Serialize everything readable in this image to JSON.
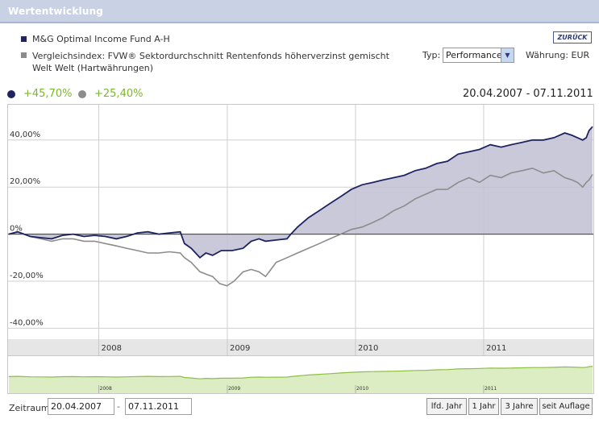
{
  "header": {
    "title": "Wertentwicklung"
  },
  "legend": {
    "fund": {
      "label": "M&G Optimal Income Fund A-H",
      "color": "#1f2460"
    },
    "index": {
      "label_line1": "Vergleichsindex: FVW® Sektordurchschnitt Rentenfonds höherverzinst gemischt",
      "label_line2": "Welt Welt (Hartwährungen)",
      "color": "#8c8c8c"
    }
  },
  "controls": {
    "back_label": "ZURÜCK",
    "typ_label": "Typ:",
    "typ_value": "Performance",
    "currency_label": "Währung: EUR"
  },
  "performance": {
    "fund_value": "+45,70%",
    "index_value": "+25,40%",
    "value_color": "#7ab72a",
    "date_range": "20.04.2007 - 07.11.2011"
  },
  "footer": {
    "zeitraum_label": "Zeitraum:",
    "from_date": "20.04.2007",
    "separator": "-",
    "to_date": "07.11.2011",
    "buttons": [
      "lfd. Jahr",
      "1 Jahr",
      "3 Jahre",
      "seit Auflage"
    ]
  },
  "chart_data": {
    "type": "area",
    "x_range": [
      "2007-04-20",
      "2011-11-07"
    ],
    "ylim": [
      -45,
      55
    ],
    "yticks": [
      40,
      20,
      0,
      -20,
      -40
    ],
    "ytick_labels": [
      "40,00%",
      "20,00%",
      "0%",
      "-20,00%",
      "-40,00%"
    ],
    "xtick_labels": [
      "2008",
      "2009",
      "2010",
      "2011"
    ],
    "xticks": [
      "2008-01-01",
      "2009-01-01",
      "2010-01-01",
      "2011-01-01"
    ],
    "grid": true,
    "series": [
      {
        "name": "M&G Optimal Income Fund A-H",
        "color": "#1f2460",
        "points": [
          [
            "2007-04-20",
            0
          ],
          [
            "2007-05-15",
            1
          ],
          [
            "2007-06-20",
            -1
          ],
          [
            "2007-07-20",
            -1.5
          ],
          [
            "2007-08-20",
            -2
          ],
          [
            "2007-09-20",
            -0.5
          ],
          [
            "2007-10-20",
            0
          ],
          [
            "2007-11-20",
            -1
          ],
          [
            "2007-12-20",
            -0.5
          ],
          [
            "2008-01-20",
            -1
          ],
          [
            "2008-02-20",
            -2
          ],
          [
            "2008-03-20",
            -1
          ],
          [
            "2008-04-20",
            0.5
          ],
          [
            "2008-05-20",
            1
          ],
          [
            "2008-06-20",
            0
          ],
          [
            "2008-07-20",
            0.5
          ],
          [
            "2008-08-20",
            1
          ],
          [
            "2008-09-01",
            -4
          ],
          [
            "2008-09-20",
            -6
          ],
          [
            "2008-10-15",
            -10
          ],
          [
            "2008-11-01",
            -8
          ],
          [
            "2008-11-20",
            -9
          ],
          [
            "2008-12-15",
            -7
          ],
          [
            "2009-01-15",
            -7
          ],
          [
            "2009-02-15",
            -6
          ],
          [
            "2009-03-10",
            -3
          ],
          [
            "2009-04-01",
            -2
          ],
          [
            "2009-04-20",
            -3
          ],
          [
            "2009-05-20",
            -2.5
          ],
          [
            "2009-06-20",
            -2
          ],
          [
            "2009-07-01",
            0
          ],
          [
            "2009-07-20",
            3
          ],
          [
            "2009-08-20",
            7
          ],
          [
            "2009-09-20",
            10
          ],
          [
            "2009-10-20",
            13
          ],
          [
            "2009-11-20",
            16
          ],
          [
            "2009-12-20",
            19
          ],
          [
            "2010-01-20",
            21
          ],
          [
            "2010-02-20",
            22
          ],
          [
            "2010-03-20",
            23
          ],
          [
            "2010-04-20",
            24
          ],
          [
            "2010-05-20",
            25
          ],
          [
            "2010-06-20",
            27
          ],
          [
            "2010-07-20",
            28
          ],
          [
            "2010-08-20",
            30
          ],
          [
            "2010-09-20",
            31
          ],
          [
            "2010-10-20",
            34
          ],
          [
            "2010-11-20",
            35
          ],
          [
            "2010-12-20",
            36
          ],
          [
            "2011-01-20",
            38
          ],
          [
            "2011-02-20",
            37
          ],
          [
            "2011-03-20",
            38
          ],
          [
            "2011-04-20",
            39
          ],
          [
            "2011-05-20",
            40
          ],
          [
            "2011-06-20",
            40
          ],
          [
            "2011-07-20",
            41
          ],
          [
            "2011-08-20",
            43
          ],
          [
            "2011-09-10",
            42
          ],
          [
            "2011-09-25",
            41
          ],
          [
            "2011-10-10",
            40
          ],
          [
            "2011-10-20",
            41
          ],
          [
            "2011-10-28",
            44
          ],
          [
            "2011-11-07",
            45.7
          ]
        ]
      },
      {
        "name": "Vergleichsindex: FVW® Sektordurchschnitt Rentenfonds höherverzinst gemischt Welt Welt (Hartwährungen)",
        "color": "#8c8c8c",
        "points": [
          [
            "2007-04-20",
            0
          ],
          [
            "2007-05-15",
            1
          ],
          [
            "2007-06-20",
            -1
          ],
          [
            "2007-07-20",
            -2
          ],
          [
            "2007-08-20",
            -3
          ],
          [
            "2007-09-20",
            -2
          ],
          [
            "2007-10-20",
            -2
          ],
          [
            "2007-11-20",
            -3
          ],
          [
            "2007-12-20",
            -3
          ],
          [
            "2008-01-20",
            -4
          ],
          [
            "2008-02-20",
            -5
          ],
          [
            "2008-03-20",
            -6
          ],
          [
            "2008-04-20",
            -7
          ],
          [
            "2008-05-20",
            -8
          ],
          [
            "2008-06-20",
            -8
          ],
          [
            "2008-07-20",
            -7.5
          ],
          [
            "2008-08-20",
            -8
          ],
          [
            "2008-09-01",
            -10
          ],
          [
            "2008-09-20",
            -12
          ],
          [
            "2008-10-15",
            -16
          ],
          [
            "2008-11-01",
            -17
          ],
          [
            "2008-11-20",
            -18
          ],
          [
            "2008-12-10",
            -21
          ],
          [
            "2008-12-31",
            -22
          ],
          [
            "2009-01-20",
            -20
          ],
          [
            "2009-02-15",
            -16
          ],
          [
            "2009-03-10",
            -15
          ],
          [
            "2009-04-01",
            -16
          ],
          [
            "2009-04-20",
            -18
          ],
          [
            "2009-05-10",
            -14
          ],
          [
            "2009-05-20",
            -12
          ],
          [
            "2009-06-20",
            -10
          ],
          [
            "2009-07-20",
            -8
          ],
          [
            "2009-08-20",
            -6
          ],
          [
            "2009-09-20",
            -4
          ],
          [
            "2009-10-20",
            -2
          ],
          [
            "2009-11-20",
            0
          ],
          [
            "2009-12-20",
            2
          ],
          [
            "2010-01-20",
            3
          ],
          [
            "2010-02-20",
            5
          ],
          [
            "2010-03-20",
            7
          ],
          [
            "2010-04-20",
            10
          ],
          [
            "2010-05-20",
            12
          ],
          [
            "2010-06-20",
            15
          ],
          [
            "2010-07-20",
            17
          ],
          [
            "2010-08-20",
            19
          ],
          [
            "2010-09-20",
            19
          ],
          [
            "2010-10-20",
            22
          ],
          [
            "2010-11-20",
            24
          ],
          [
            "2010-12-20",
            22
          ],
          [
            "2011-01-20",
            25
          ],
          [
            "2011-02-20",
            24
          ],
          [
            "2011-03-20",
            26
          ],
          [
            "2011-04-20",
            27
          ],
          [
            "2011-05-20",
            28
          ],
          [
            "2011-06-20",
            26
          ],
          [
            "2011-07-20",
            27
          ],
          [
            "2011-08-20",
            24
          ],
          [
            "2011-09-10",
            23
          ],
          [
            "2011-09-25",
            22
          ],
          [
            "2011-10-10",
            20
          ],
          [
            "2011-10-20",
            22
          ],
          [
            "2011-10-28",
            23
          ],
          [
            "2011-11-07",
            25.4
          ]
        ]
      }
    ]
  },
  "navigator": {
    "xtick_labels": [
      "2008",
      "2009",
      "2010",
      "2011"
    ],
    "fill_color": "#dcedc4",
    "line_color": "#8dbf45"
  }
}
